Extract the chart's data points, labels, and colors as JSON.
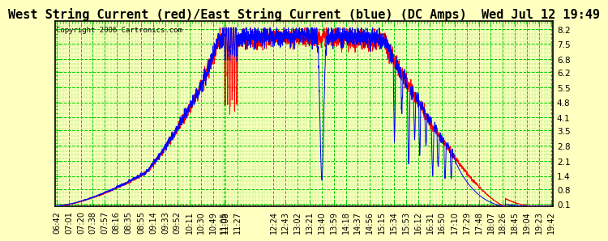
{
  "title": "West String Current (red)/East String Current (blue) (DC Amps)  Wed Jul 12 19:49",
  "copyright": "Copyright 2006 Cartronics.com",
  "bg_color": "#ffffc0",
  "plot_bg_color": "#ffffc0",
  "grid_color": "#00cc00",
  "border_color": "#000000",
  "y_ticks": [
    0.1,
    0.8,
    1.4,
    2.1,
    2.8,
    3.5,
    4.1,
    4.8,
    5.5,
    6.2,
    6.8,
    7.5,
    8.2
  ],
  "y_min": 0.0,
  "y_max": 8.55,
  "red_color": "#ff0000",
  "blue_color": "#0000ff",
  "title_fontsize": 11,
  "copyright_fontsize": 6.5,
  "tick_fontsize": 7.5,
  "x_tick_labels": [
    "06:42",
    "07:01",
    "07:20",
    "07:38",
    "07:57",
    "08:16",
    "08:35",
    "08:55",
    "09:14",
    "09:33",
    "09:52",
    "10:11",
    "10:30",
    "10:49",
    "11:08",
    "11:27",
    "11:05",
    "12:24",
    "12:43",
    "13:02",
    "13:21",
    "13:40",
    "13:59",
    "14:18",
    "14:37",
    "14:56",
    "15:15",
    "15:34",
    "15:53",
    "16:12",
    "16:31",
    "16:50",
    "17:10",
    "17:29",
    "17:48",
    "18:07",
    "18:26",
    "18:45",
    "19:04",
    "19:23",
    "19:42"
  ]
}
